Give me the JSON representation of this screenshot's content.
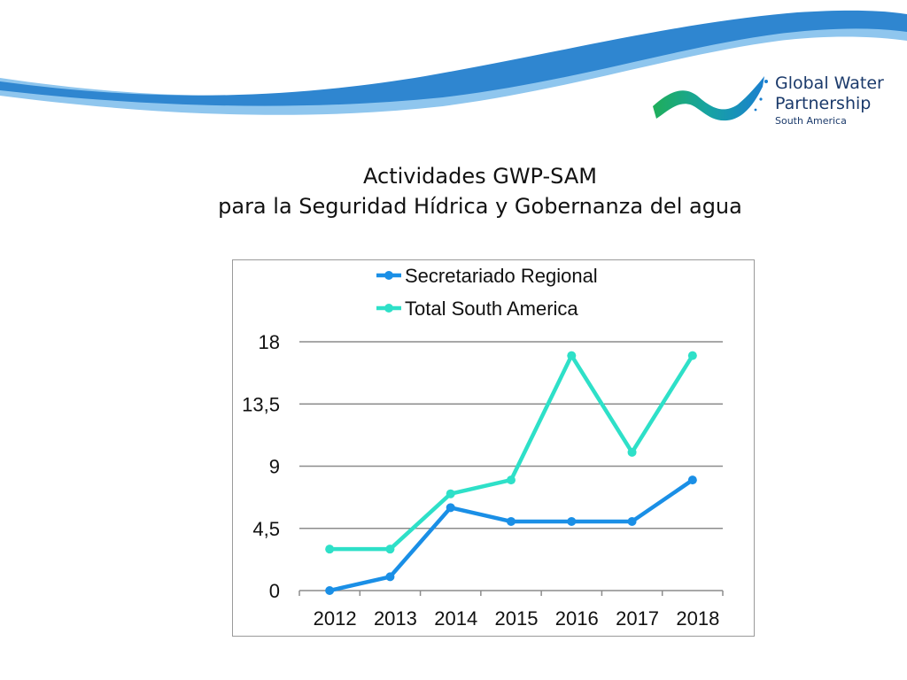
{
  "slide": {
    "title_line1": "Actividades GWP-SAM",
    "title_line2": "para la Seguridad Hídrica y Gobernanza del agua"
  },
  "logo": {
    "line1": "Global Water",
    "line2": "Partnership",
    "line3": "South America"
  },
  "colors": {
    "secretariado": "#1a8fe6",
    "total": "#2ee0c8",
    "grid": "#8c8c8c",
    "wave_dark": "#2f86d0",
    "wave_light": "#8fc6ee"
  },
  "chart_data": {
    "type": "line",
    "title": "",
    "xlabel": "",
    "ylabel": "",
    "categories": [
      "2012",
      "2013",
      "2014",
      "2015",
      "2016",
      "2017",
      "2018"
    ],
    "ylim": [
      0,
      18
    ],
    "yticks": [
      0,
      4.5,
      9,
      13.5,
      18
    ],
    "ytick_labels": [
      "0",
      "4,5",
      "9",
      "13,5",
      "18"
    ],
    "grid": true,
    "legend_position": "top",
    "series": [
      {
        "name": "Secretariado Regional",
        "values": [
          0,
          1,
          6,
          5,
          5,
          5,
          8
        ]
      },
      {
        "name": "Total South America",
        "values": [
          3,
          3,
          7,
          8,
          17,
          10,
          17
        ]
      }
    ]
  }
}
